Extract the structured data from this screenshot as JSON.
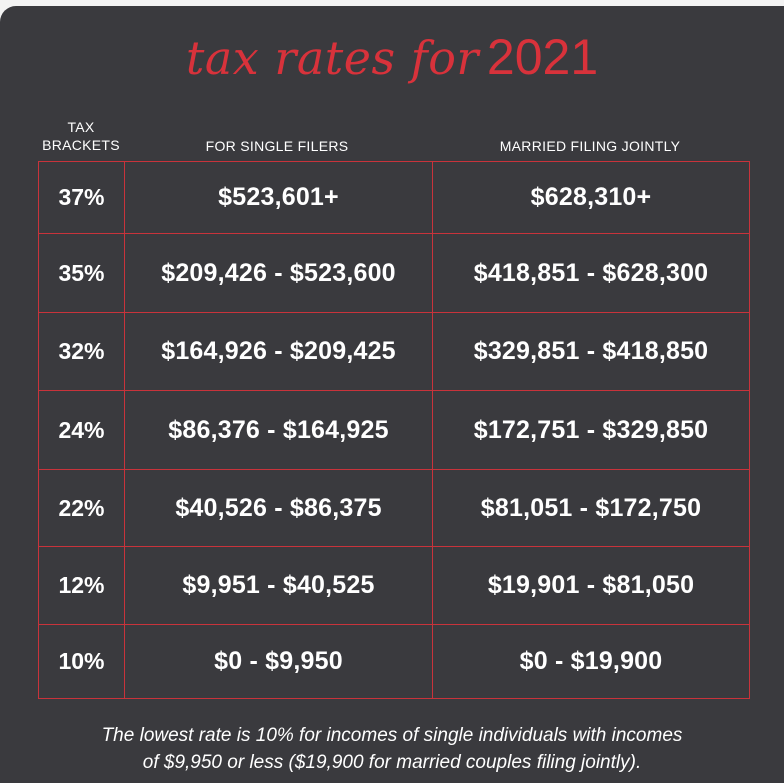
{
  "title": {
    "script": "tax rates for",
    "year": "2021"
  },
  "headers": {
    "brackets_line1": "TAX",
    "brackets_line2": "BRACKETS",
    "single": "FOR SINGLE FILERS",
    "married": "MARRIED FILING JOINTLY"
  },
  "chart_data": {
    "type": "table",
    "title": "tax rates for 2021",
    "columns": [
      "TAX BRACKETS",
      "FOR SINGLE FILERS",
      "MARRIED FILING JOINTLY"
    ],
    "rows": [
      {
        "rate": "37%",
        "single": "$523,601+",
        "married": "$628,310+"
      },
      {
        "rate": "35%",
        "single": "$209,426 - $523,600",
        "married": "$418,851 - $628,300"
      },
      {
        "rate": "32%",
        "single": "$164,926 - $209,425",
        "married": "$329,851 - $418,850"
      },
      {
        "rate": "24%",
        "single": "$86,376 - $164,925",
        "married": "$172,751 - $329,850"
      },
      {
        "rate": "22%",
        "single": "$40,526 - $86,375",
        "married": "$81,051 - $172,750"
      },
      {
        "rate": "12%",
        "single": "$9,951 - $40,525",
        "married": "$19,901 - $81,050"
      },
      {
        "rate": "10%",
        "single": "$0 - $9,950",
        "married": "$0 - $19,900"
      }
    ]
  },
  "footnote": {
    "line1": "The lowest rate is 10% for incomes of single individuals with incomes",
    "line2": "of $9,950 or less ($19,900 for married couples filing jointly)."
  },
  "colors": {
    "background": "#3a3a3e",
    "accent": "#d8323b",
    "text": "#ffffff"
  }
}
